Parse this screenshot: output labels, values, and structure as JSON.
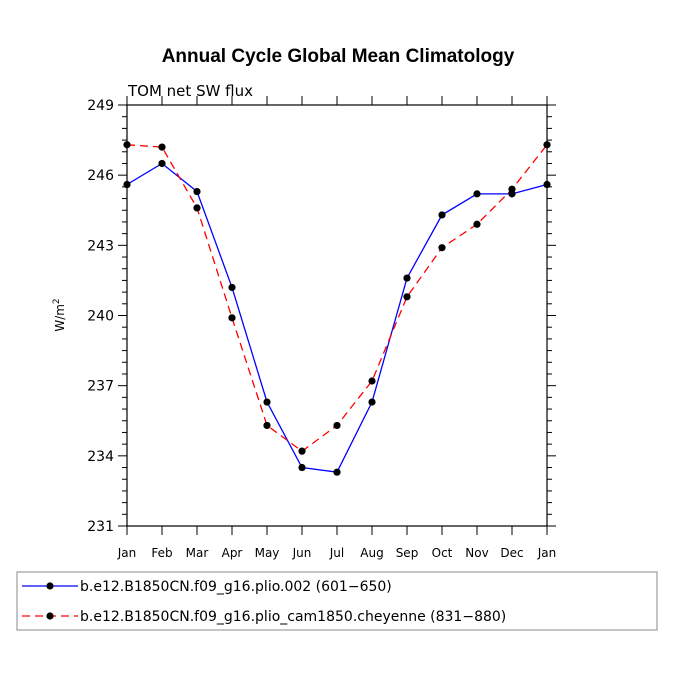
{
  "chart_data": {
    "type": "line",
    "title": "Annual Cycle Global Mean Climatology",
    "subtitle": "TOM net SW flux",
    "xlabel": "",
    "ylabel": "W/m",
    "ylabel_superscript": "2",
    "categories": [
      "Jan",
      "Feb",
      "Mar",
      "Apr",
      "May",
      "Jun",
      "Jul",
      "Aug",
      "Sep",
      "Oct",
      "Nov",
      "Dec",
      "Jan"
    ],
    "ylim": [
      231,
      249
    ],
    "yticks": [
      231,
      234,
      237,
      240,
      243,
      246,
      249
    ],
    "yticks_minor_step": 0.5,
    "grid": false,
    "legend_position": "bottom",
    "series": [
      {
        "name": "b.e12.B1850CN.f09_g16.plio.002 (601−650)",
        "color": "#0000ff",
        "style": "solid",
        "values": [
          245.6,
          246.5,
          245.3,
          241.2,
          236.3,
          233.5,
          233.3,
          236.3,
          241.6,
          244.3,
          245.2,
          245.2,
          245.6
        ]
      },
      {
        "name": "b.e12.B1850CN.f09_g16.plio_cam1850.cheyenne (831−880)",
        "color": "#ff0000",
        "style": "dashed",
        "values": [
          247.3,
          247.2,
          244.6,
          239.9,
          235.3,
          234.2,
          235.3,
          237.2,
          240.8,
          242.9,
          243.9,
          245.4,
          247.3
        ]
      }
    ]
  }
}
